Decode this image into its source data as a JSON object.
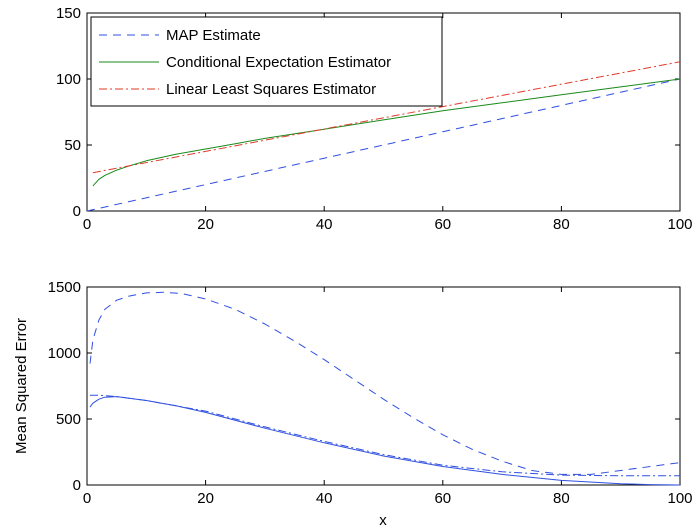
{
  "chart_data": [
    {
      "type": "line",
      "xlim": [
        0,
        100
      ],
      "ylim": [
        0,
        150
      ],
      "xticks": [
        0,
        20,
        40,
        60,
        80,
        100
      ],
      "yticks": [
        0,
        50,
        100,
        150
      ],
      "xtick_labels": [
        "0",
        "20",
        "40",
        "60",
        "80",
        "100"
      ],
      "ytick_labels": [
        "0",
        "50",
        "100",
        "150"
      ],
      "xlabel": "",
      "ylabel": "",
      "grid": false,
      "legend_position": "top-left",
      "series": [
        {
          "name": "MAP Estimate",
          "color": "#3050e0",
          "style": "dashed",
          "x": [
            0,
            20,
            40,
            60,
            80,
            100
          ],
          "y": [
            0,
            20,
            40,
            60,
            80,
            100
          ]
        },
        {
          "name": "Conditional Expectation Estimator",
          "color": "#1a8a1a",
          "style": "solid",
          "x": [
            1,
            2,
            3,
            5,
            7,
            10,
            15,
            20,
            25,
            30,
            40,
            50,
            60,
            70,
            80,
            90,
            100
          ],
          "y": [
            19,
            24,
            27,
            31,
            34,
            38,
            43,
            47,
            51,
            55,
            62,
            69,
            76,
            82,
            88,
            94,
            100
          ]
        },
        {
          "name": "Linear Least Squares Estimator",
          "color": "#e03a2a",
          "style": "dashdot",
          "x": [
            1,
            100
          ],
          "y": [
            29,
            113
          ]
        }
      ]
    },
    {
      "type": "line",
      "xlim": [
        0,
        100
      ],
      "ylim": [
        0,
        1500
      ],
      "xticks": [
        0,
        20,
        40,
        60,
        80,
        100
      ],
      "yticks": [
        0,
        500,
        1000,
        1500
      ],
      "xtick_labels": [
        "0",
        "20",
        "40",
        "60",
        "80",
        "100"
      ],
      "ytick_labels": [
        "0",
        "500",
        "1000",
        "1500"
      ],
      "xlabel": "x",
      "ylabel": "Mean Squared Error",
      "grid": false,
      "series": [
        {
          "color": "#3050e0",
          "style": "dashed",
          "x": [
            0.5,
            1,
            2,
            3,
            5,
            7,
            10,
            13,
            16,
            20,
            25,
            30,
            35,
            40,
            45,
            50,
            55,
            60,
            65,
            70,
            75,
            80,
            85,
            90,
            95,
            100
          ],
          "y": [
            920,
            1100,
            1250,
            1330,
            1400,
            1430,
            1455,
            1460,
            1450,
            1410,
            1330,
            1220,
            1090,
            950,
            800,
            650,
            510,
            380,
            270,
            180,
            110,
            80,
            80,
            110,
            140,
            170
          ]
        },
        {
          "color": "#3050e0",
          "style": "solid",
          "x": [
            0.5,
            1,
            2,
            3,
            5,
            10,
            15,
            20,
            30,
            40,
            50,
            60,
            70,
            80,
            90,
            95,
            100
          ],
          "y": [
            590,
            620,
            650,
            665,
            670,
            640,
            600,
            550,
            430,
            320,
            220,
            140,
            80,
            35,
            10,
            3,
            0
          ]
        },
        {
          "color": "#3050e0",
          "style": "dashdot",
          "x": [
            0.5,
            2,
            5,
            10,
            20,
            30,
            40,
            50,
            60,
            70,
            80,
            90,
            100
          ],
          "y": [
            680,
            680,
            670,
            640,
            560,
            440,
            330,
            230,
            150,
            100,
            75,
            70,
            70
          ]
        }
      ]
    }
  ]
}
